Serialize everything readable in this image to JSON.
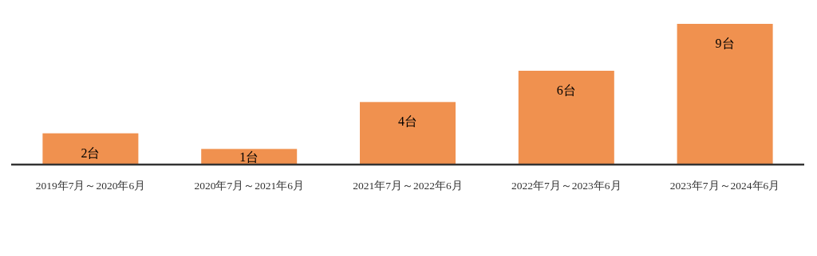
{
  "chart_data": {
    "type": "bar",
    "categories": [
      "2019年7月～2020年6月",
      "2020年7月～2021年6月",
      "2021年7月～2022年6月",
      "2022年7月～2023年6月",
      "2023年7月～2024年6月"
    ],
    "values": [
      2,
      1,
      4,
      6,
      9
    ],
    "value_labels": [
      "2台",
      "1台",
      "4台",
      "6台",
      "9台"
    ],
    "color": "#f0914f"
  }
}
